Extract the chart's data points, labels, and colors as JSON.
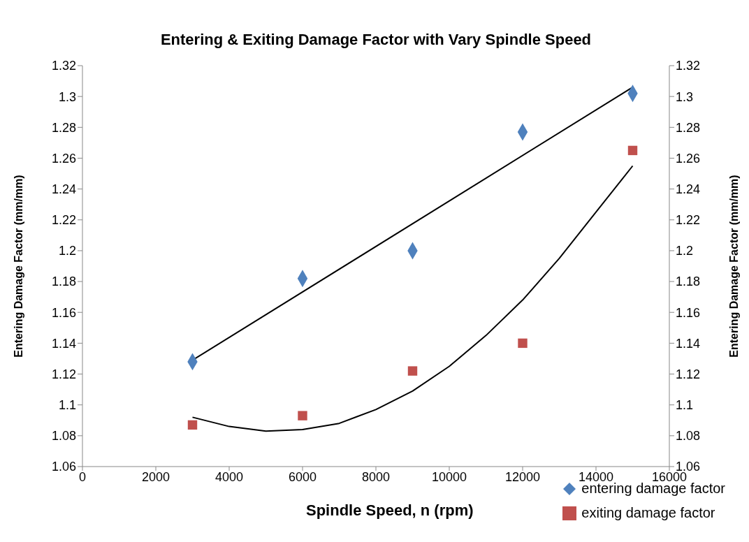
{
  "chart_data": {
    "type": "scatter",
    "title": "Entering & Exiting Damage Factor with Vary Spindle Speed",
    "xlabel": "Spindle Speed, n (rpm)",
    "ylabel": "Entering Damage Factor (mm/mm)",
    "y2label": "Entering Damage Factor (mm/mm)",
    "xlim": [
      0,
      16000
    ],
    "xticks": [
      0,
      2000,
      4000,
      6000,
      8000,
      10000,
      12000,
      14000,
      16000
    ],
    "ylim": [
      1.06,
      1.32
    ],
    "yticks": [
      1.06,
      1.08,
      1.1,
      1.12,
      1.14,
      1.16,
      1.18,
      1.2,
      1.22,
      1.24,
      1.26,
      1.28,
      1.3,
      1.32
    ],
    "y2lim": [
      1.06,
      1.32
    ],
    "y2ticks": [
      1.06,
      1.08,
      1.1,
      1.12,
      1.14,
      1.16,
      1.18,
      1.2,
      1.22,
      1.24,
      1.26,
      1.28,
      1.3,
      1.32
    ],
    "grid": false,
    "legend": "bottom right",
    "series": [
      {
        "name": "entering damage  factor",
        "marker": "diamond",
        "color": "#4f81bd",
        "x": [
          3000,
          6000,
          9000,
          12000,
          15000
        ],
        "values": [
          1.128,
          1.182,
          1.2,
          1.277,
          1.302
        ]
      },
      {
        "name": "exiting damage  factor",
        "marker": "square",
        "color": "#c0504d",
        "x": [
          3000,
          6000,
          9000,
          12000,
          15000
        ],
        "values": [
          1.087,
          1.093,
          1.122,
          1.14,
          1.265
        ]
      },
      {
        "type": "line",
        "marker": "none",
        "color": "#000000",
        "x": [
          3000,
          15000
        ],
        "values": [
          1.129,
          1.306
        ]
      },
      {
        "type": "line",
        "marker": "none",
        "color": "#000000",
        "x": [
          3000,
          4000,
          5000,
          6000,
          7000,
          8000,
          9000,
          10000,
          11000,
          12000,
          13000,
          14000,
          15000
        ],
        "values": [
          1.092,
          1.086,
          1.083,
          1.084,
          1.088,
          1.097,
          1.109,
          1.125,
          1.145,
          1.168,
          1.195,
          1.225,
          1.255
        ]
      }
    ]
  }
}
